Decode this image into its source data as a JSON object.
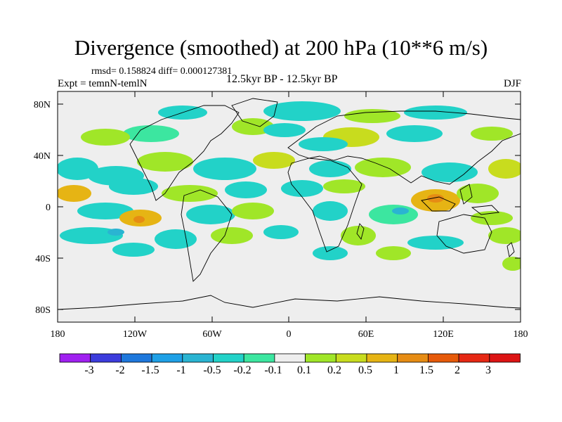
{
  "title": "Divergence (smoothed) at 200 hPa (10**6 m/s)",
  "stats": "rmsd= 0.158824 diff= 0.000127381",
  "experiment": "Expt = temnN-temlN",
  "period": "12.5kyr BP - 12.5kyr BP",
  "season": "DJF",
  "lat_labels": [
    "80N",
    "40N",
    "0",
    "40S",
    "80S"
  ],
  "lon_labels": [
    "180",
    "120W",
    "60W",
    "0",
    "60E",
    "120E",
    "180"
  ],
  "colorbar": {
    "labels": [
      "-3",
      "-2",
      "-1.5",
      "-1",
      "-0.5",
      "-0.2",
      "-0.1",
      "0.1",
      "0.2",
      "0.5",
      "1",
      "1.5",
      "2",
      "3"
    ],
    "colors": [
      "#a020f0",
      "#3c3cdc",
      "#1e78dc",
      "#1ea0e6",
      "#2ab4d2",
      "#22d2c8",
      "#3ce6a0",
      "#eeeeee",
      "#a0e628",
      "#c8dc1e",
      "#e6b414",
      "#e68c14",
      "#e65a0a",
      "#e62814",
      "#dc1414"
    ]
  }
}
